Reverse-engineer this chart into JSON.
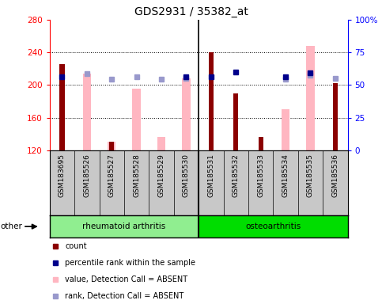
{
  "title": "GDS2931 / 35382_at",
  "samples": [
    "GSM183695",
    "GSM185526",
    "GSM185527",
    "GSM185528",
    "GSM185529",
    "GSM185530",
    "GSM185531",
    "GSM185532",
    "GSM185533",
    "GSM185534",
    "GSM185535",
    "GSM185536"
  ],
  "group_labels": [
    "rheumatoid arthritis",
    "osteoarthritis"
  ],
  "group_split": 6,
  "count_values": [
    226,
    null,
    130,
    null,
    null,
    null,
    240,
    190,
    136,
    null,
    null,
    202
  ],
  "percentile_values": [
    210,
    null,
    null,
    null,
    null,
    210,
    210,
    216,
    null,
    210,
    215,
    null
  ],
  "value_absent": [
    null,
    214,
    130,
    195,
    136,
    208,
    null,
    null,
    null,
    170,
    248,
    null
  ],
  "rank_absent": [
    null,
    214,
    207,
    210,
    207,
    208,
    null,
    null,
    null,
    207,
    212,
    208
  ],
  "ylim_left": [
    120,
    280
  ],
  "ylim_right": [
    0,
    100
  ],
  "yticks_left": [
    120,
    160,
    200,
    240,
    280
  ],
  "yticks_right": [
    0,
    25,
    50,
    75,
    100
  ],
  "bar_color_count": "#8B0000",
  "bar_color_absent": "#FFB6C1",
  "dot_color_percentile": "#00008B",
  "dot_color_rank_absent": "#9999CC",
  "group_color_ra": "#90EE90",
  "group_color_oa": "#00CC00",
  "sample_bg": "#C8C8C8",
  "other_label": "other"
}
